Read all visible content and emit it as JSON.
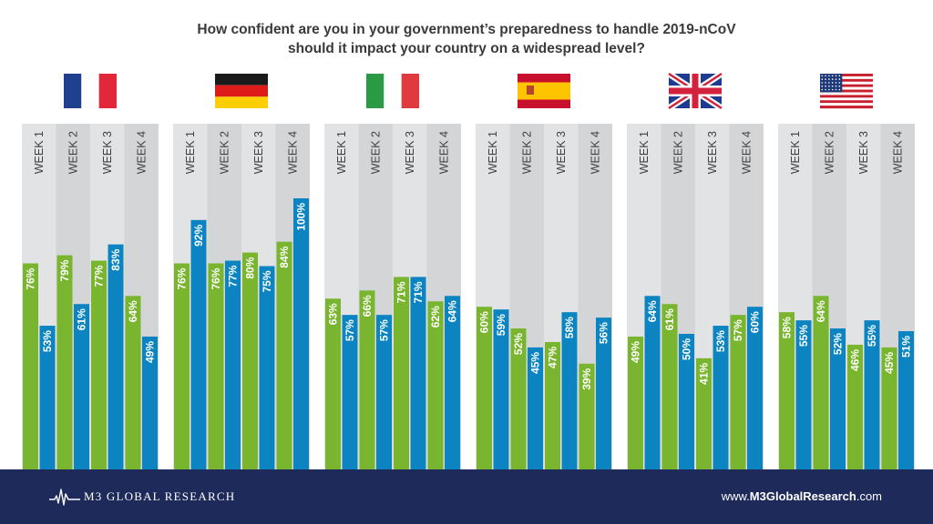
{
  "title": {
    "line1": "How confident are you in your government’s preparedness to handle 2019-nCoV",
    "line2": "should it impact your country on a widespread level?"
  },
  "footer": {
    "logo_text": "M3  GLOBAL RESEARCH",
    "site_prefix": "www.",
    "site_bold": "M3GlobalResearch",
    "site_suffix": ".com",
    "background": "#1d2a5a"
  },
  "colors": {
    "green": "#7ab52f",
    "blue": "#0c84c1",
    "panel": "#e2e3e4",
    "stripe": "#d4d5d7"
  },
  "chart_data": {
    "type": "bar",
    "categories": [
      "WEEK 1",
      "WEEK 2",
      "WEEK 3",
      "WEEK 4"
    ],
    "ylim": [
      0,
      100
    ],
    "grid": false,
    "panels": [
      {
        "flag": "france-flag",
        "values": [
          [
            76,
            53
          ],
          [
            79,
            61
          ],
          [
            77,
            83
          ],
          [
            64,
            49
          ]
        ]
      },
      {
        "flag": "germany-flag",
        "values": [
          [
            76,
            92
          ],
          [
            76,
            77
          ],
          [
            80,
            75
          ],
          [
            84,
            100
          ]
        ]
      },
      {
        "flag": "italy-flag",
        "values": [
          [
            63,
            57
          ],
          [
            66,
            57
          ],
          [
            71,
            71
          ],
          [
            62,
            64
          ]
        ]
      },
      {
        "flag": "spain-flag",
        "values": [
          [
            60,
            59
          ],
          [
            52,
            45
          ],
          [
            47,
            58
          ],
          [
            39,
            56
          ]
        ]
      },
      {
        "flag": "uk-flag",
        "values": [
          [
            49,
            64
          ],
          [
            61,
            50
          ],
          [
            41,
            53
          ],
          [
            57,
            60
          ]
        ]
      },
      {
        "flag": "usa-flag",
        "values": [
          [
            58,
            55
          ],
          [
            64,
            52
          ],
          [
            46,
            55
          ],
          [
            45,
            51
          ]
        ]
      }
    ]
  }
}
